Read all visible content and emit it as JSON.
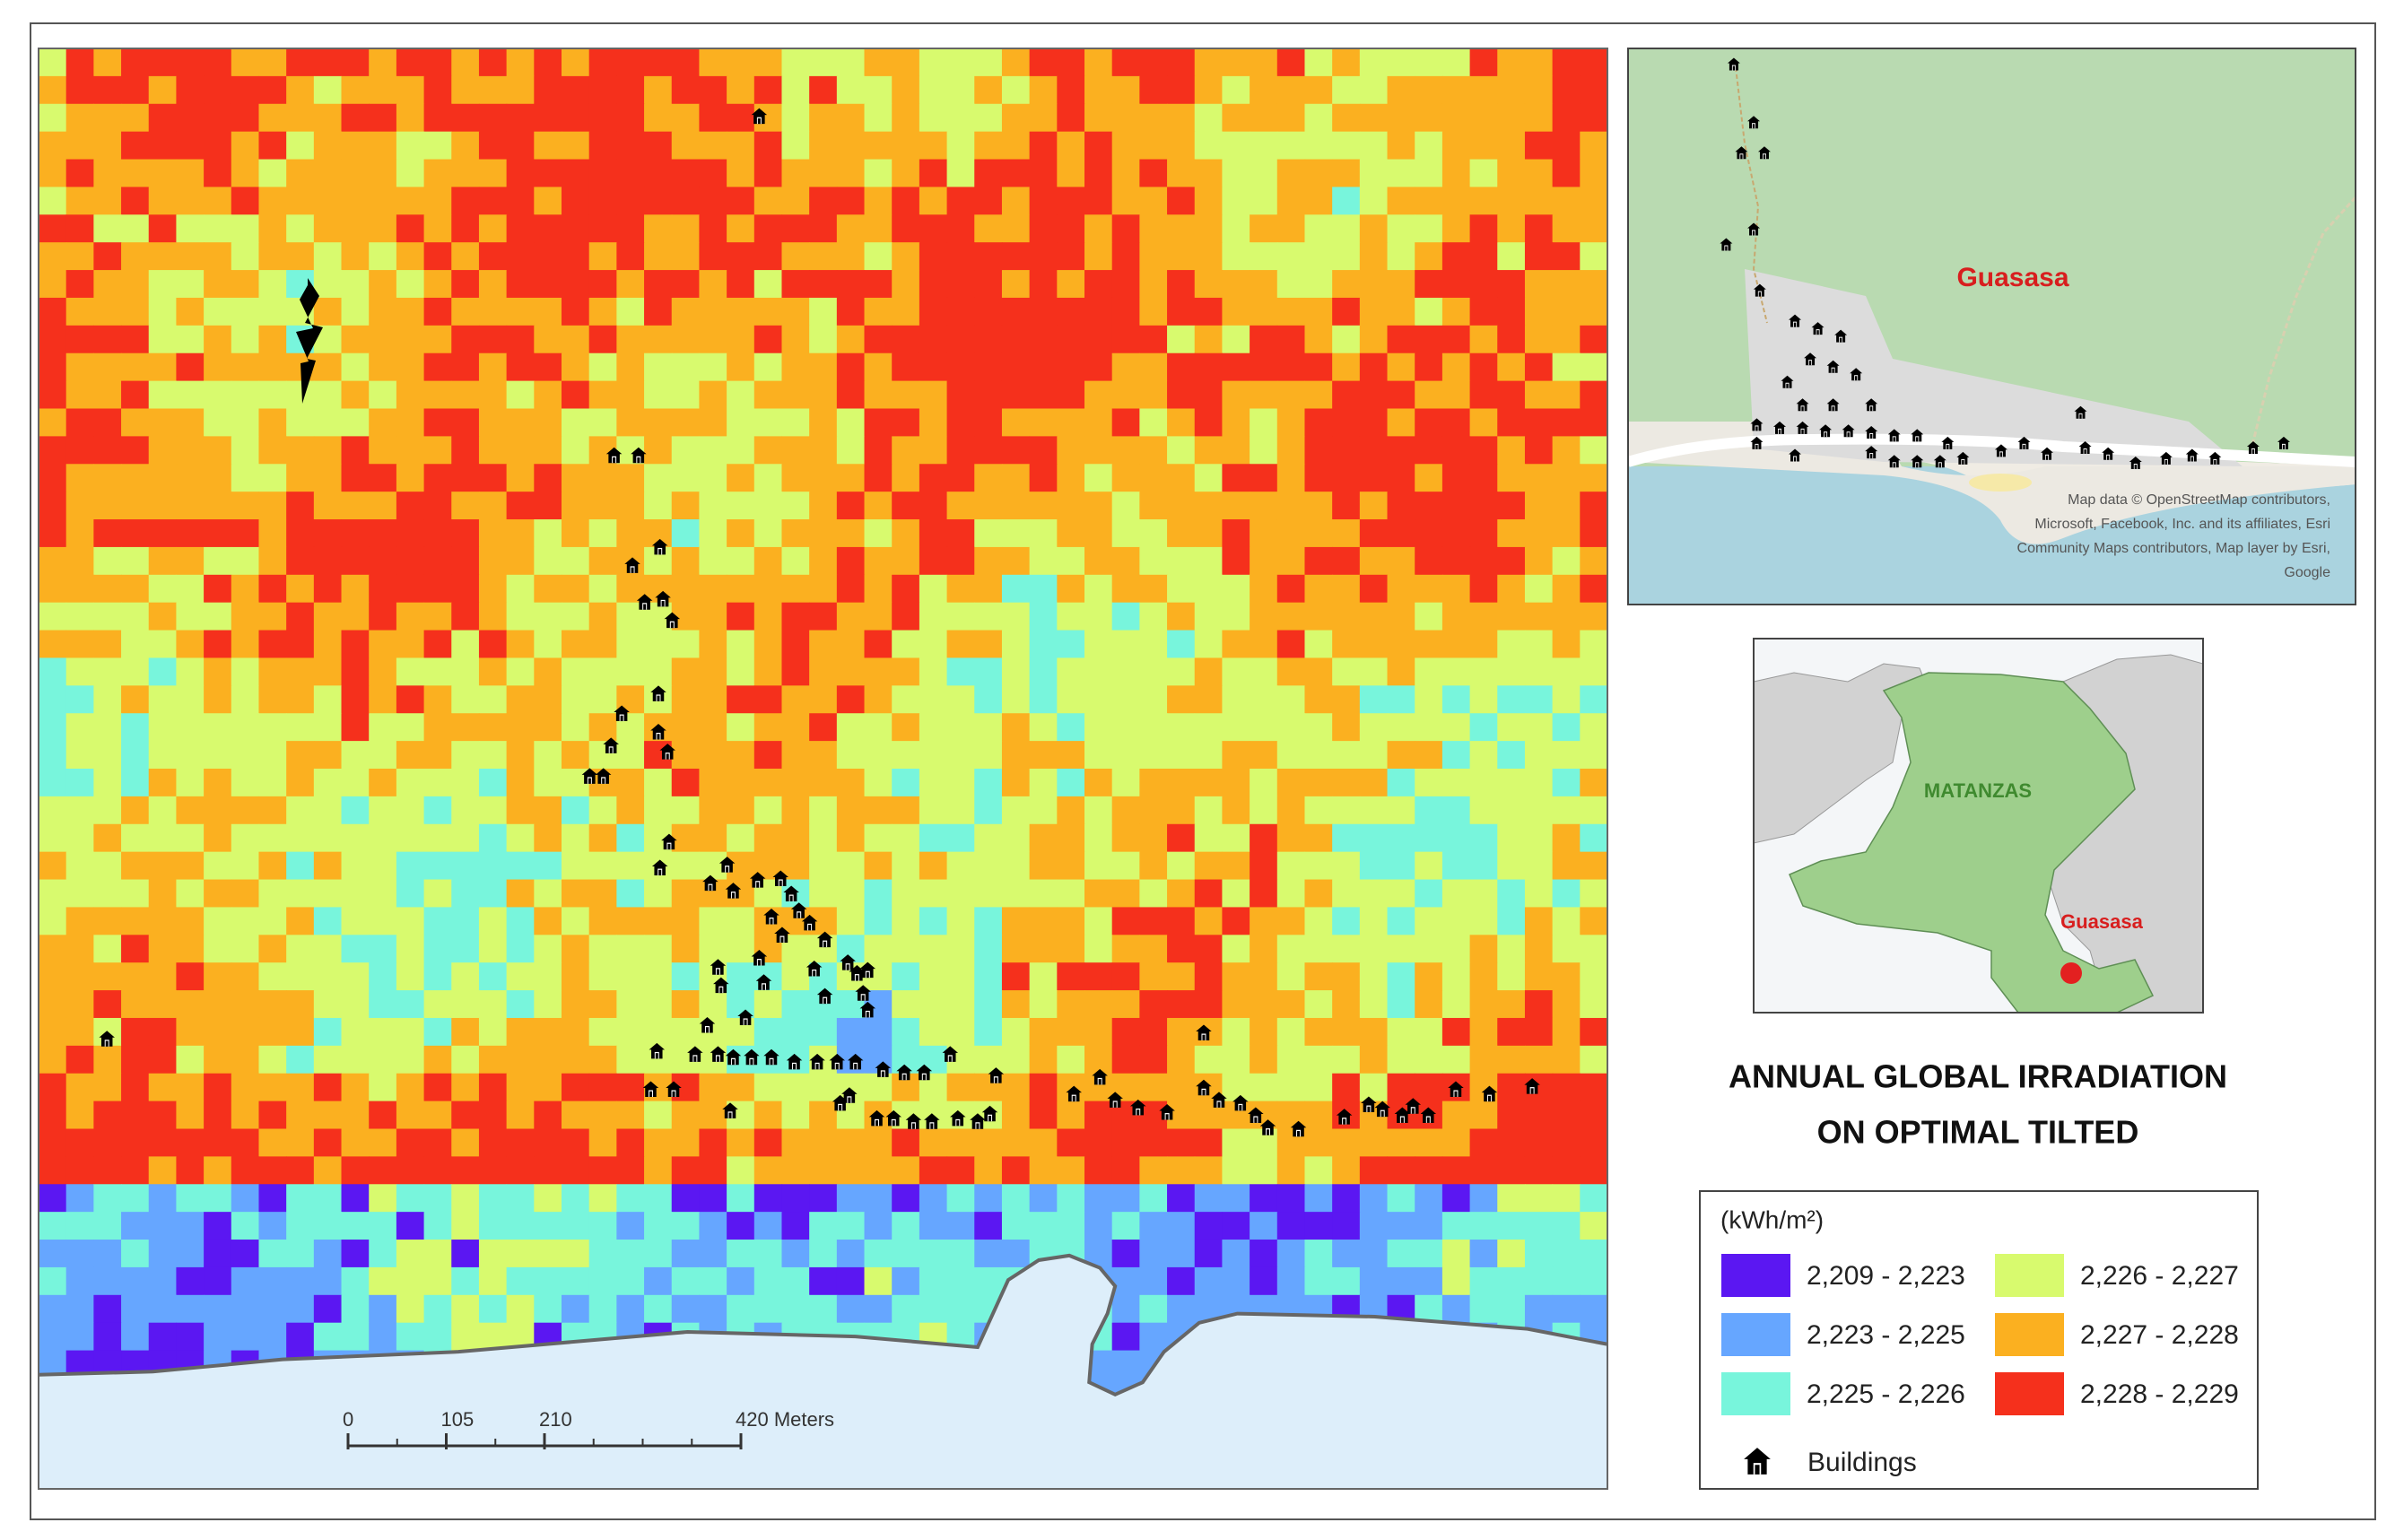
{
  "title": [
    "ANNUAL GLOBAL IRRADIATION",
    "ON OPTIMAL TILTED"
  ],
  "legend": {
    "title": "(kWh/m²)",
    "classes": [
      {
        "label": "2,209 - 2,223",
        "color": "#5b17f2"
      },
      {
        "label": "2,223 - 2,225",
        "color": "#66a6ff"
      },
      {
        "label": "2,225 - 2,226",
        "color": "#78f5dc"
      },
      {
        "label": "2,226 - 2,227",
        "color": "#d8fa6e"
      },
      {
        "label": "2,227 - 2,228",
        "color": "#fbb020"
      },
      {
        "label": "2,228 - 2,229",
        "color": "#f5301c"
      }
    ],
    "buildings": "Buildings"
  },
  "scale_bar": {
    "ticks": [
      0,
      105,
      210,
      {
        "value": 420,
        "label": "420 Meters"
      }
    ]
  },
  "inset": {
    "place": "Guasasa",
    "attribution": [
      "Map data © OpenStreetMap contributors,",
      "Microsoft, Facebook, Inc. and its affiliates, Esri",
      "Community Maps contributors, Map layer by Esri,",
      "Google"
    ]
  },
  "locator": {
    "province": "MATANZAS",
    "place": "Guasasa"
  }
}
